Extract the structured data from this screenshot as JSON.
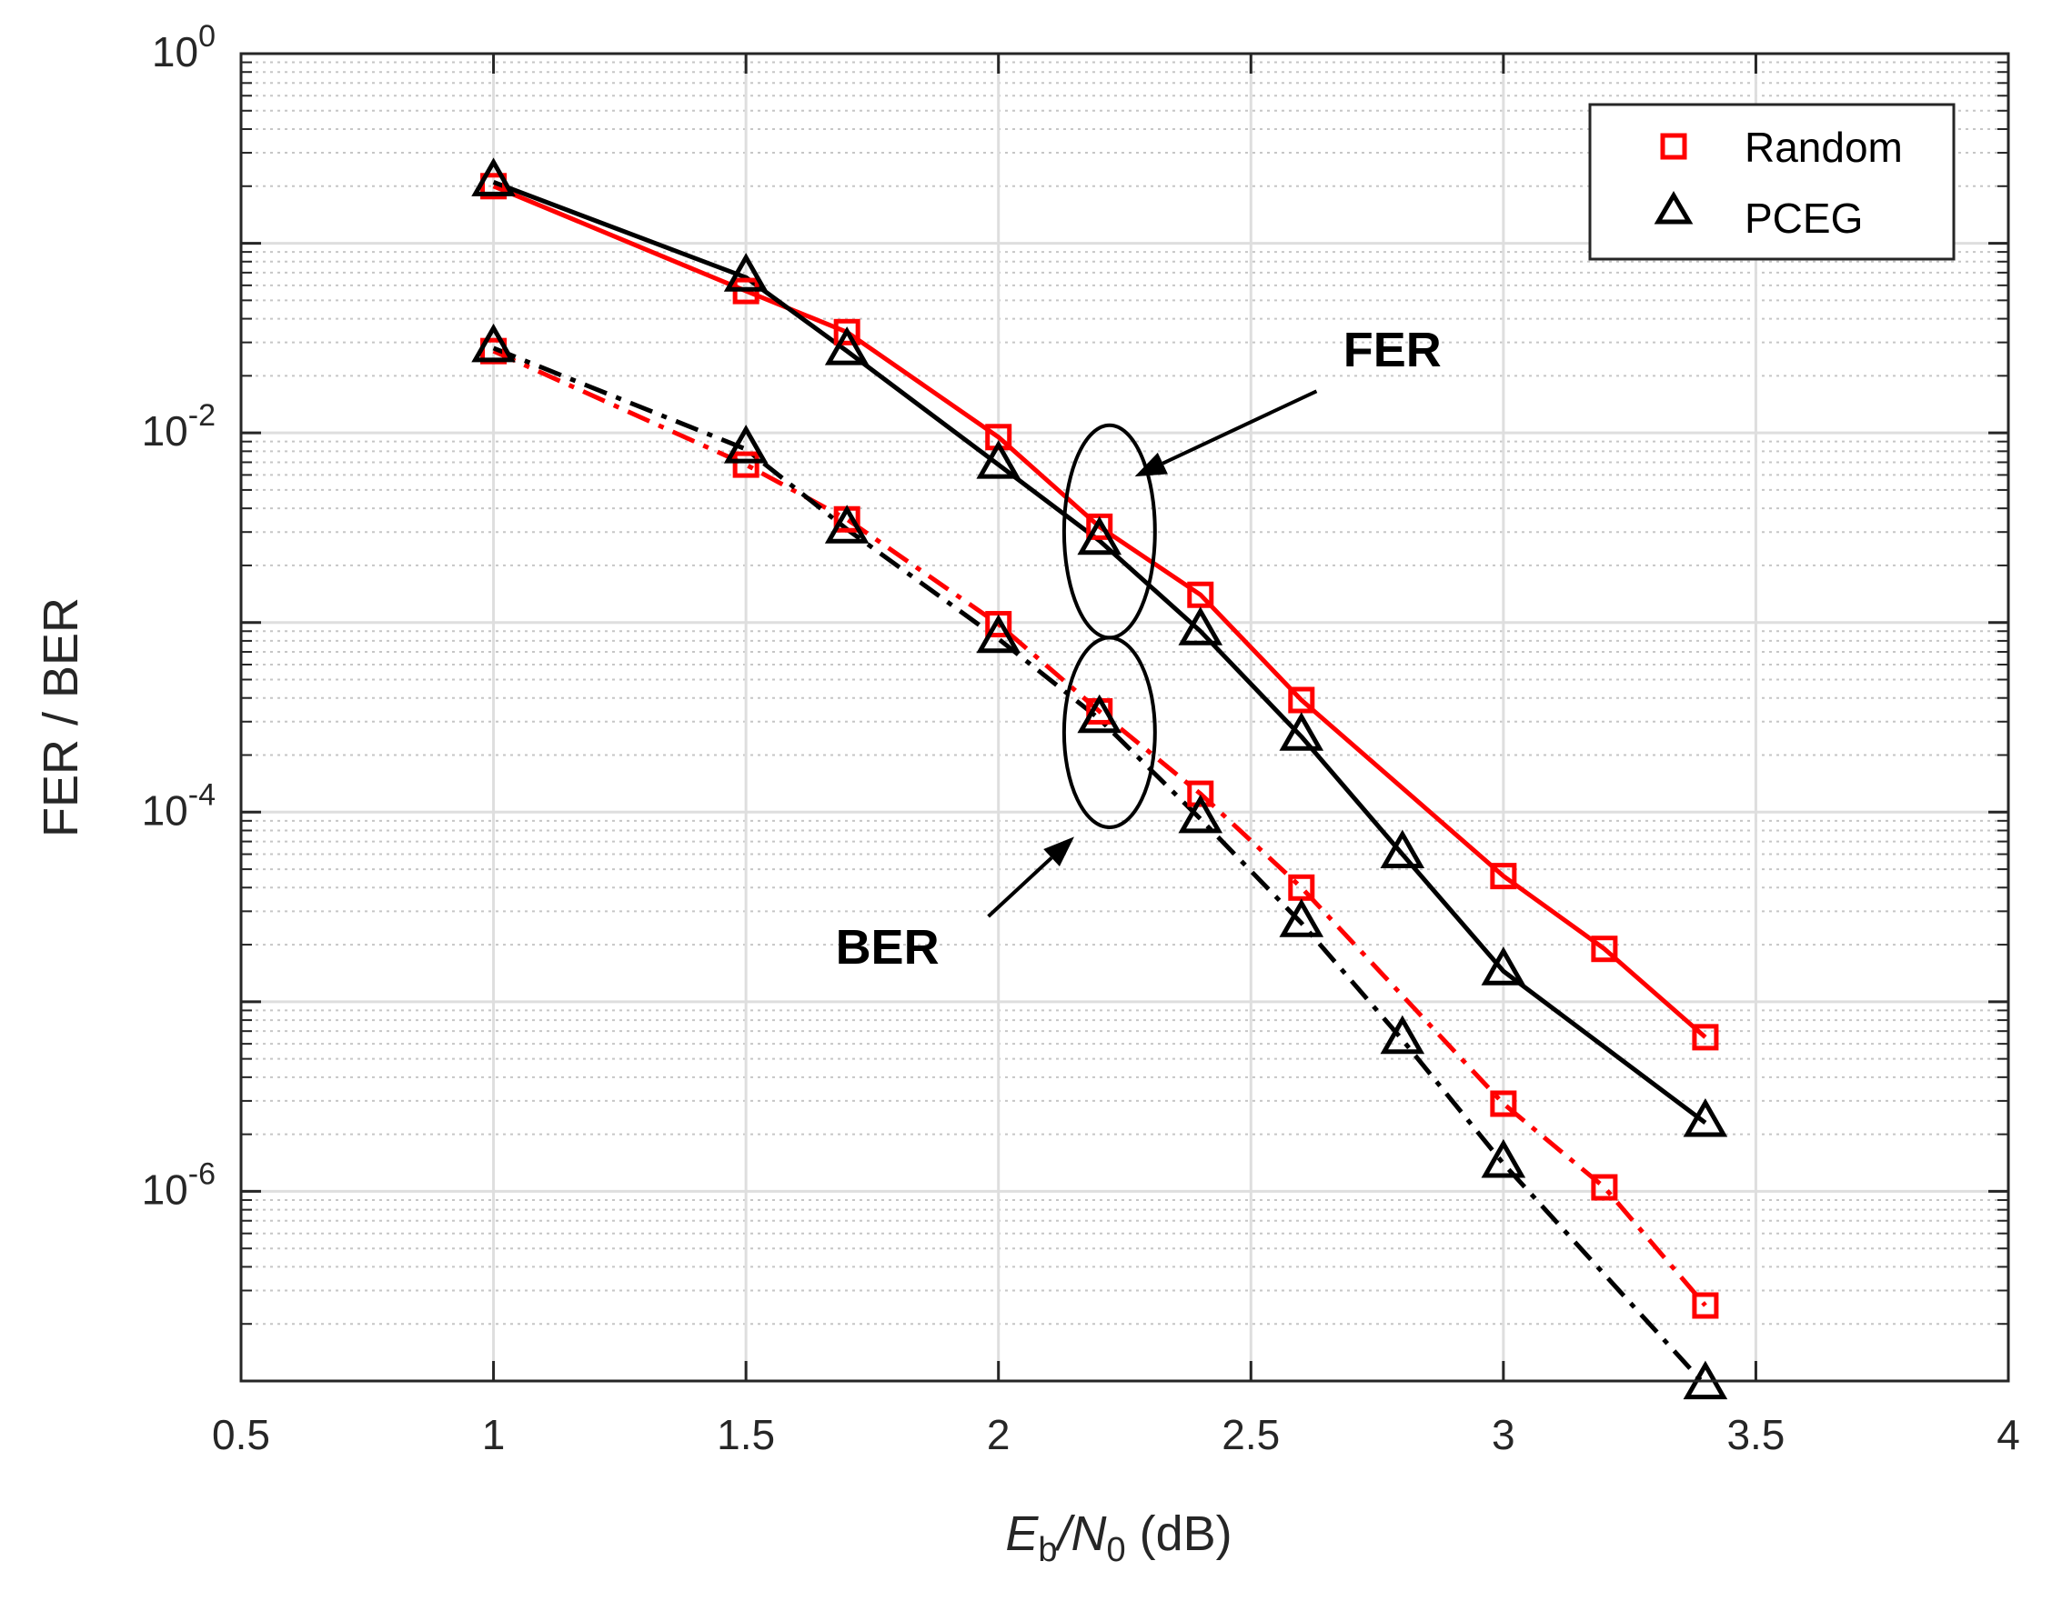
{
  "chart_data": {
    "type": "line",
    "xscale": "linear",
    "yscale": "log",
    "xlabel": {
      "main": "E",
      "sub1": "b",
      "mid": "/N",
      "sub2": "0",
      "unit": " (dB)"
    },
    "ylabel": "FER / BER",
    "xlim": [
      0.5,
      4
    ],
    "ylim_exp": [
      -7.0,
      0
    ],
    "xticks": [
      "0.5",
      "1",
      "1.5",
      "2",
      "2.5",
      "3",
      "3.5",
      "4"
    ],
    "xtick_values": [
      0.5,
      1,
      1.5,
      2,
      2.5,
      3,
      3.5,
      4
    ],
    "yticks": [
      {
        "base": "10",
        "exp": "0",
        "value_exp": 0
      },
      {
        "base": "10",
        "exp": "-2",
        "value_exp": -2
      },
      {
        "base": "10",
        "exp": "-4",
        "value_exp": -4
      },
      {
        "base": "10",
        "exp": "-6",
        "value_exp": -6
      }
    ],
    "grid": true,
    "legend": {
      "position": "top-right",
      "entries": [
        {
          "label": "Random",
          "marker": "square",
          "color": "#ff0000"
        },
        {
          "label": "PCEG",
          "marker": "triangle",
          "color": "#000000"
        }
      ]
    },
    "series": [
      {
        "name": "Random FER",
        "legend": "Random",
        "metric": "FER",
        "color": "#ff0000",
        "linestyle": "solid",
        "marker": "square",
        "x": [
          1,
          1.5,
          1.7,
          2,
          2.2,
          2.4,
          2.6,
          3,
          3.2,
          3.4
        ],
        "y": [
          0.2,
          0.056,
          0.034,
          0.0095,
          0.0032,
          0.0014,
          0.00039,
          4.6e-05,
          1.9e-05,
          6.5e-06
        ]
      },
      {
        "name": "PCEG FER",
        "legend": "PCEG",
        "metric": "FER",
        "color": "#000000",
        "linestyle": "solid",
        "marker": "triangle",
        "x": [
          1,
          1.5,
          1.7,
          2,
          2.2,
          2.4,
          2.6,
          2.8,
          3,
          3.4
        ],
        "y": [
          0.21,
          0.066,
          0.027,
          0.0068,
          0.0027,
          0.0009,
          0.00025,
          6e-05,
          1.45e-05,
          2.3e-06
        ]
      },
      {
        "name": "Random BER",
        "legend": "Random",
        "metric": "BER",
        "color": "#ff0000",
        "linestyle": "dashdot",
        "marker": "square",
        "x": [
          1,
          1.5,
          1.7,
          2,
          2.2,
          2.4,
          2.6,
          3,
          3.2,
          3.4
        ],
        "y": [
          0.027,
          0.0068,
          0.0035,
          0.00098,
          0.00034,
          0.000125,
          4e-05,
          2.9e-06,
          1.05e-06,
          2.5e-07
        ]
      },
      {
        "name": "PCEG BER",
        "legend": "PCEG",
        "metric": "BER",
        "color": "#000000",
        "linestyle": "dashdot",
        "marker": "triangle",
        "x": [
          1,
          1.5,
          1.7,
          2,
          2.2,
          2.4,
          2.6,
          2.8,
          3,
          3.4
        ],
        "y": [
          0.028,
          0.0082,
          0.0031,
          0.00082,
          0.00031,
          9.2e-05,
          2.6e-05,
          6.3e-06,
          1.4e-06,
          9.5e-08
        ]
      }
    ],
    "annotations": [
      {
        "label": "FER",
        "ellipse_center": [
          2.22,
          -2.52
        ],
        "ellipse_semi": [
          0.09,
          0.56
        ],
        "text_at": [
          2.78,
          -1.65
        ],
        "arrow_from": [
          2.63,
          -1.78
        ],
        "arrow_to": [
          2.27,
          -2.23
        ]
      },
      {
        "label": "BER",
        "ellipse_center": [
          2.22,
          -3.58
        ],
        "ellipse_semi": [
          0.09,
          0.5
        ],
        "text_at": [
          1.78,
          -4.8
        ],
        "arrow_from": [
          1.98,
          -4.55
        ],
        "arrow_to": [
          2.15,
          -4.13
        ]
      }
    ]
  }
}
